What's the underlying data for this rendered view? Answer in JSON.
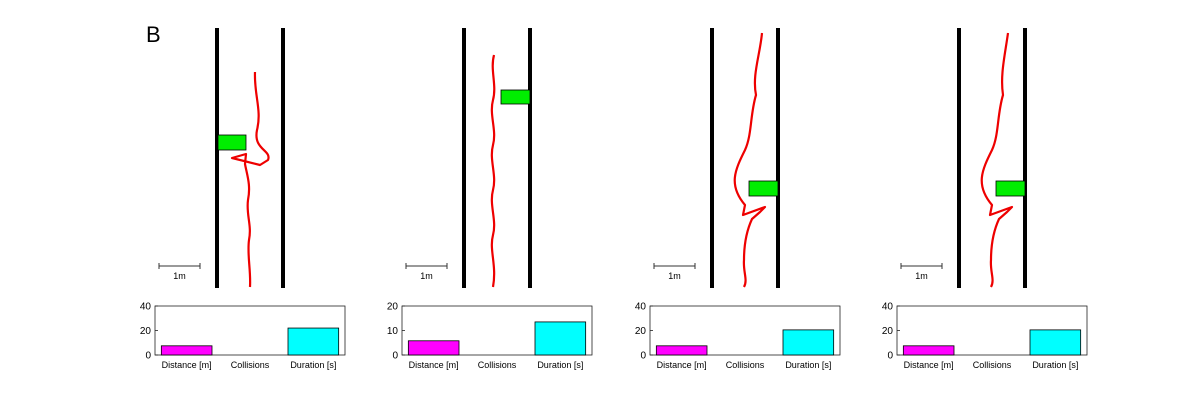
{
  "figure": {
    "panel_label": "B",
    "scale_label": "1m"
  },
  "chart_data": [
    {
      "type": "bar",
      "categories": [
        "Distance [m]",
        "Collisions",
        "Duration [s]"
      ],
      "values": [
        7.5,
        0,
        22
      ],
      "ylim": [
        0,
        40
      ],
      "yticks": [
        0,
        20,
        40
      ],
      "colors": [
        "#ff00ff",
        "#ffffff",
        "#00ffff"
      ]
    },
    {
      "type": "bar",
      "categories": [
        "Distance [m]",
        "Collisions",
        "Duration [s]"
      ],
      "values": [
        5.8,
        0,
        13.5
      ],
      "ylim": [
        0,
        20
      ],
      "yticks": [
        0,
        10,
        20
      ],
      "colors": [
        "#ff00ff",
        "#ffffff",
        "#00ffff"
      ]
    },
    {
      "type": "bar",
      "categories": [
        "Distance [m]",
        "Collisions",
        "Duration [s]"
      ],
      "values": [
        7.5,
        0,
        20.5
      ],
      "ylim": [
        0,
        40
      ],
      "yticks": [
        0,
        20,
        40
      ],
      "colors": [
        "#ff00ff",
        "#ffffff",
        "#00ffff"
      ]
    },
    {
      "type": "bar",
      "categories": [
        "Distance [m]",
        "Collisions",
        "Duration [s]"
      ],
      "values": [
        7.5,
        0,
        20.5
      ],
      "ylim": [
        0,
        40
      ],
      "yticks": [
        0,
        20,
        40
      ],
      "colors": [
        "#ff00ff",
        "#ffffff",
        "#00ffff"
      ]
    }
  ],
  "colors": {
    "trajectory": "#ee0000",
    "obstacle": "#00ee00",
    "walls": "#000000"
  }
}
